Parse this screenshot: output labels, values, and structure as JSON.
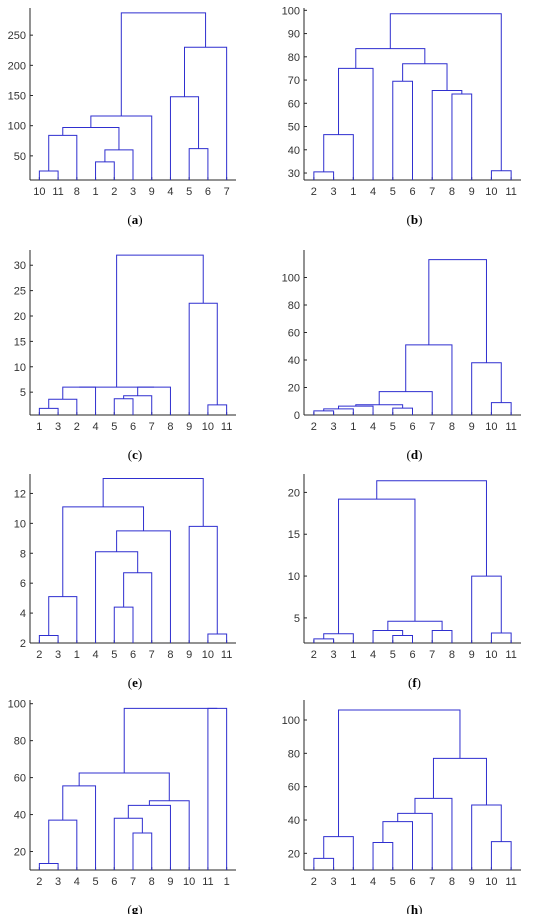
{
  "colors": {
    "link": "#2f2fcf",
    "axis": "#262626",
    "text": "#333333"
  },
  "chart_data": [
    {
      "type": "dendrogram",
      "caption": "a",
      "ylim": [
        10,
        295
      ],
      "yticks": [
        50,
        100,
        150,
        200,
        250
      ],
      "leaf_order": [
        "10",
        "11",
        "8",
        "1",
        "2",
        "3",
        "9",
        "4",
        "5",
        "6",
        "7"
      ],
      "merges": [
        {
          "a": "L10",
          "b": "L11",
          "h": 25
        },
        {
          "a": "L1",
          "b": "L2",
          "h": 40
        },
        {
          "a": "L5",
          "b": "L6",
          "h": 62
        },
        {
          "a": "M1",
          "b": "L3",
          "h": 60
        },
        {
          "a": "M0",
          "b": "L8",
          "h": 84
        },
        {
          "a": "M4",
          "b": "M3",
          "h": 97
        },
        {
          "a": "M5",
          "b": "L9",
          "h": 116
        },
        {
          "a": "L4",
          "b": "M2",
          "h": 148
        },
        {
          "a": "M7",
          "b": "L7",
          "h": 230
        },
        {
          "a": "M6",
          "b": "M8",
          "h": 287
        }
      ]
    },
    {
      "type": "dendrogram",
      "caption": "b",
      "ylim": [
        27,
        101
      ],
      "yticks": [
        30,
        40,
        50,
        60,
        70,
        80,
        90,
        100
      ],
      "leaf_order": [
        "2",
        "3",
        "1",
        "4",
        "5",
        "6",
        "7",
        "8",
        "9",
        "10",
        "11"
      ],
      "merges": [
        {
          "a": "L2",
          "b": "L3",
          "h": 30.5
        },
        {
          "a": "L10",
          "b": "L11",
          "h": 31
        },
        {
          "a": "M0",
          "b": "L1",
          "h": 46.5
        },
        {
          "a": "L8",
          "b": "L9",
          "h": 64
        },
        {
          "a": "L7",
          "b": "M3",
          "h": 65.5
        },
        {
          "a": "L5",
          "b": "L6",
          "h": 69.5
        },
        {
          "a": "M2",
          "b": "L4",
          "h": 75
        },
        {
          "a": "M5",
          "b": "M4",
          "h": 77
        },
        {
          "a": "M6",
          "b": "M7",
          "h": 83.5
        },
        {
          "a": "M8",
          "b": "M1",
          "h": 98.5
        }
      ]
    },
    {
      "type": "dendrogram",
      "caption": "c",
      "ylim": [
        0.5,
        33
      ],
      "yticks": [
        5,
        10,
        15,
        20,
        25,
        30
      ],
      "leaf_order": [
        "1",
        "3",
        "2",
        "4",
        "5",
        "6",
        "7",
        "8",
        "9",
        "10",
        "11"
      ],
      "merges": [
        {
          "a": "L1",
          "b": "L3",
          "h": 1.8
        },
        {
          "a": "L10",
          "b": "L11",
          "h": 2.5
        },
        {
          "a": "M0",
          "b": "L2",
          "h": 3.6
        },
        {
          "a": "L5",
          "b": "L6",
          "h": 3.7
        },
        {
          "a": "M3",
          "b": "L7",
          "h": 4.3
        },
        {
          "a": "M2",
          "b": "L4",
          "h": 6
        },
        {
          "a": "M4",
          "b": "L8",
          "h": 6
        },
        {
          "a": "M5",
          "b": "M6",
          "h": 6
        },
        {
          "a": "L9",
          "b": "M1",
          "h": 22.5
        },
        {
          "a": "M7",
          "b": "M8",
          "h": 32
        }
      ]
    },
    {
      "type": "dendrogram",
      "caption": "d",
      "ylim": [
        0,
        120
      ],
      "yticks": [
        0,
        20,
        40,
        60,
        80,
        100
      ],
      "leaf_order": [
        "2",
        "3",
        "1",
        "4",
        "5",
        "6",
        "7",
        "8",
        "9",
        "10",
        "11"
      ],
      "merges": [
        {
          "a": "L2",
          "b": "L3",
          "h": 3
        },
        {
          "a": "M0",
          "b": "L1",
          "h": 4.5
        },
        {
          "a": "L5",
          "b": "L6",
          "h": 5
        },
        {
          "a": "M1",
          "b": "L4",
          "h": 6.5
        },
        {
          "a": "M3",
          "b": "M2",
          "h": 7.5
        },
        {
          "a": "L10",
          "b": "L11",
          "h": 9
        },
        {
          "a": "M4",
          "b": "L7",
          "h": 17
        },
        {
          "a": "L9",
          "b": "M5",
          "h": 38
        },
        {
          "a": "M6",
          "b": "L8",
          "h": 51
        },
        {
          "a": "M8",
          "b": "M7",
          "h": 113
        }
      ]
    },
    {
      "type": "dendrogram",
      "caption": "e",
      "ylim": [
        2,
        13.3
      ],
      "yticks": [
        2,
        4,
        6,
        8,
        10,
        12
      ],
      "leaf_order": [
        "2",
        "3",
        "1",
        "4",
        "5",
        "6",
        "7",
        "8",
        "9",
        "10",
        "11"
      ],
      "merges": [
        {
          "a": "L2",
          "b": "L3",
          "h": 2.5
        },
        {
          "a": "L10",
          "b": "L11",
          "h": 2.6
        },
        {
          "a": "L5",
          "b": "L6",
          "h": 4.4
        },
        {
          "a": "M0",
          "b": "L1",
          "h": 5.1
        },
        {
          "a": "M2",
          "b": "L7",
          "h": 6.7
        },
        {
          "a": "L4",
          "b": "M4",
          "h": 8.1
        },
        {
          "a": "M5",
          "b": "L8",
          "h": 9.5
        },
        {
          "a": "L9",
          "b": "M1",
          "h": 9.8
        },
        {
          "a": "M3",
          "b": "M6",
          "h": 11.1
        },
        {
          "a": "M8",
          "b": "M7",
          "h": 13
        }
      ]
    },
    {
      "type": "dendrogram",
      "caption": "f",
      "ylim": [
        2,
        22.2
      ],
      "yticks": [
        5,
        10,
        15,
        20
      ],
      "leaf_order": [
        "2",
        "3",
        "1",
        "4",
        "5",
        "6",
        "7",
        "8",
        "9",
        "10",
        "11"
      ],
      "merges": [
        {
          "a": "L2",
          "b": "L3",
          "h": 2.5
        },
        {
          "a": "L5",
          "b": "L6",
          "h": 2.9
        },
        {
          "a": "M0",
          "b": "L1",
          "h": 3.1
        },
        {
          "a": "L10",
          "b": "L11",
          "h": 3.2
        },
        {
          "a": "L4",
          "b": "M1",
          "h": 3.5
        },
        {
          "a": "L7",
          "b": "L8",
          "h": 3.5
        },
        {
          "a": "M4",
          "b": "M5",
          "h": 4.6
        },
        {
          "a": "L9",
          "b": "M3",
          "h": 10
        },
        {
          "a": "M2",
          "b": "M6",
          "h": 19.2
        },
        {
          "a": "M8",
          "b": "M7",
          "h": 21.4
        }
      ]
    },
    {
      "type": "dendrogram",
      "caption": "g",
      "ylim": [
        10,
        102
      ],
      "yticks": [
        20,
        40,
        60,
        80,
        100
      ],
      "leaf_order": [
        "2",
        "3",
        "4",
        "5",
        "6",
        "7",
        "8",
        "9",
        "10",
        "11",
        "1"
      ],
      "merges": [
        {
          "a": "L2",
          "b": "L3",
          "h": 13.5
        },
        {
          "a": "L7",
          "b": "L8",
          "h": 30
        },
        {
          "a": "M0",
          "b": "L4",
          "h": 37
        },
        {
          "a": "L6",
          "b": "M1",
          "h": 38
        },
        {
          "a": "M3",
          "b": "L9",
          "h": 45
        },
        {
          "a": "M4",
          "b": "L10",
          "h": 47.5
        },
        {
          "a": "M2",
          "b": "L5",
          "h": 55.5
        },
        {
          "a": "M6",
          "b": "M5",
          "h": 62.5
        },
        {
          "a": "L11",
          "b": "L1",
          "h": 97.5
        },
        {
          "a": "M7",
          "b": "M8",
          "h": 97.5
        }
      ]
    },
    {
      "type": "dendrogram",
      "caption": "h",
      "ylim": [
        10,
        112
      ],
      "yticks": [
        20,
        40,
        60,
        80,
        100
      ],
      "leaf_order": [
        "2",
        "3",
        "1",
        "4",
        "5",
        "6",
        "7",
        "8",
        "9",
        "10",
        "11"
      ],
      "merges": [
        {
          "a": "L2",
          "b": "L3",
          "h": 17
        },
        {
          "a": "L4",
          "b": "L5",
          "h": 26.5
        },
        {
          "a": "L10",
          "b": "L11",
          "h": 27
        },
        {
          "a": "M0",
          "b": "L1",
          "h": 30
        },
        {
          "a": "M1",
          "b": "L6",
          "h": 39
        },
        {
          "a": "M4",
          "b": "L7",
          "h": 44
        },
        {
          "a": "L9",
          "b": "M2",
          "h": 49
        },
        {
          "a": "M5",
          "b": "L8",
          "h": 53
        },
        {
          "a": "M7",
          "b": "M6",
          "h": 77
        },
        {
          "a": "M3",
          "b": "M8",
          "h": 106
        }
      ]
    }
  ]
}
